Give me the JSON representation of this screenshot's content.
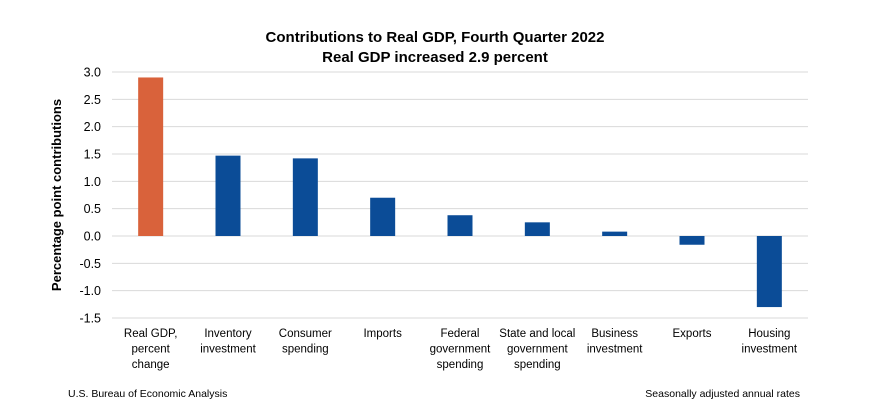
{
  "chart_data": {
    "type": "bar",
    "title": "Contributions to Real GDP, Fourth Quarter 2022",
    "subtitle": "Real GDP increased 2.9 percent",
    "ylabel": "Percentage point contributions",
    "xlabel": "",
    "ylim": [
      -1.5,
      3.0
    ],
    "yticks": [
      "3.0",
      "2.5",
      "2.0",
      "1.5",
      "1.0",
      "0.5",
      "0.0",
      "-0.5",
      "-1.0",
      "-1.5"
    ],
    "grid": true,
    "legend": "none",
    "categories": [
      [
        "Real GDP,",
        "percent",
        "change"
      ],
      [
        "Inventory",
        "investment"
      ],
      [
        "Consumer",
        "spending"
      ],
      [
        "Imports"
      ],
      [
        "Federal",
        "government",
        "spending"
      ],
      [
        "State and local",
        "government",
        "spending"
      ],
      [
        "Business",
        "investment"
      ],
      [
        "Exports"
      ],
      [
        "Housing",
        "investment"
      ]
    ],
    "values": [
      2.9,
      1.47,
      1.42,
      0.7,
      0.38,
      0.25,
      0.08,
      -0.16,
      -1.3
    ],
    "colors": [
      "#D9623B",
      "#0B4C97",
      "#0B4C97",
      "#0B4C97",
      "#0B4C97",
      "#0B4C97",
      "#0B4C97",
      "#0B4C97",
      "#0B4C97"
    ]
  },
  "footer": {
    "source": "U.S. Bureau of Economic Analysis",
    "note": "Seasonally adjusted annual rates"
  }
}
